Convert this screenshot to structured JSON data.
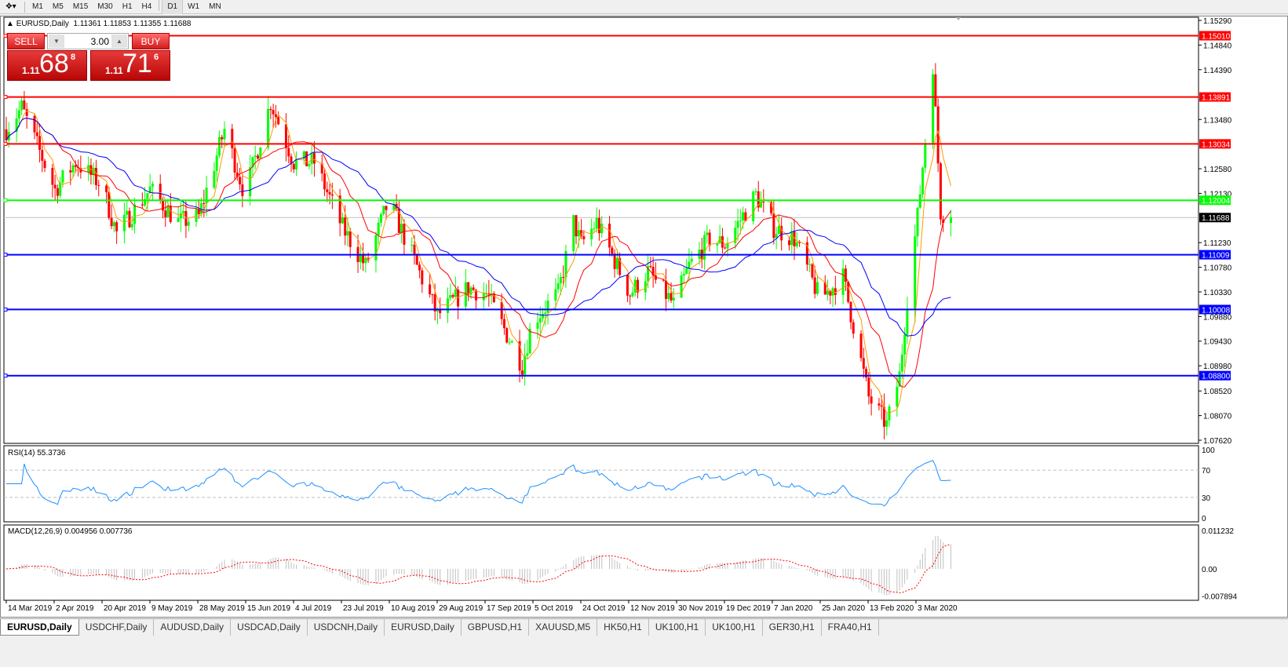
{
  "toolbar": {
    "timeframes": [
      "M1",
      "M5",
      "M15",
      "M30",
      "H1",
      "H4",
      "D1",
      "W1",
      "MN"
    ],
    "active": "D1"
  },
  "chart": {
    "symbol_title": "EURUSD,Daily",
    "ohlc": "1.11361 1.11853 1.11355 1.11688",
    "trade_panel": {
      "sell_label": "SELL",
      "buy_label": "BUY",
      "lots": "3.00",
      "sell_price": {
        "prefix": "1.11",
        "big": "68",
        "sup": "8"
      },
      "buy_price": {
        "prefix": "1.11",
        "big": "71",
        "sup": "6"
      }
    },
    "price_axis_labels": [
      "1.15290",
      "1.14840",
      "1.14390",
      "1.13480",
      "1.12580",
      "1.12130",
      "1.11230",
      "1.10780",
      "1.10330",
      "1.09880",
      "1.09430",
      "1.08980",
      "1.08520",
      "1.08070",
      "1.07620"
    ],
    "price_range": [
      1.0762,
      1.1529
    ],
    "bid": "1.11688",
    "horizontal_lines": [
      {
        "price": "1.15010",
        "color": "#ff0000"
      },
      {
        "price": "1.13891",
        "color": "#ff0000"
      },
      {
        "price": "1.13034",
        "color": "#ff0000"
      },
      {
        "price": "1.12004",
        "color": "#00ff00"
      },
      {
        "price": "1.11009",
        "color": "#0000ff"
      },
      {
        "price": "1.10008",
        "color": "#0000ff"
      },
      {
        "price": "1.08800",
        "color": "#0000ff"
      }
    ],
    "date_labels": [
      "14 Mar 2019",
      "2 Apr 2019",
      "20 Apr 2019",
      "9 May 2019",
      "28 May 2019",
      "15 Jun 2019",
      "4 Jul 2019",
      "23 Jul 2019",
      "10 Aug 2019",
      "29 Aug 2019",
      "17 Sep 2019",
      "5 Oct 2019",
      "24 Oct 2019",
      "12 Nov 2019",
      "30 Nov 2019",
      "19 Dec 2019",
      "7 Jan 2020",
      "25 Jan 2020",
      "13 Feb 2020",
      "3 Mar 2020"
    ],
    "colors": {
      "bull": "#00ff00",
      "bear": "#ff0000",
      "ma_fast": "#ff9900",
      "ma_mid": "#ff0000",
      "ma_slow": "#0000ff",
      "rsi": "#1e90ff",
      "macd_signal": "#ff0000",
      "macd_hist": "#c0c0c0"
    },
    "rsi": {
      "label": "RSI(14) 55.3736",
      "levels": [
        "100",
        "70",
        "30",
        "0"
      ]
    },
    "macd": {
      "label": "MACD(12,26,9) 0.004956 0.007736",
      "levels": [
        "0.011232",
        "0.00",
        "-0.007894"
      ]
    }
  },
  "chart_data": {
    "type": "candlestick",
    "waypoints": [
      [
        "2019-03-14",
        1.133
      ],
      [
        "2019-03-20",
        1.137
      ],
      [
        "2019-04-02",
        1.122
      ],
      [
        "2019-04-10",
        1.127
      ],
      [
        "2019-04-20",
        1.123
      ],
      [
        "2019-04-26",
        1.114
      ],
      [
        "2019-05-09",
        1.122
      ],
      [
        "2019-05-20",
        1.116
      ],
      [
        "2019-05-28",
        1.117
      ],
      [
        "2019-06-07",
        1.133
      ],
      [
        "2019-06-15",
        1.121
      ],
      [
        "2019-06-25",
        1.138
      ],
      [
        "2019-07-04",
        1.127
      ],
      [
        "2019-07-12",
        1.127
      ],
      [
        "2019-07-23",
        1.115
      ],
      [
        "2019-08-01",
        1.108
      ],
      [
        "2019-08-10",
        1.12
      ],
      [
        "2019-08-20",
        1.109
      ],
      [
        "2019-08-29",
        1.099
      ],
      [
        "2019-09-10",
        1.104
      ],
      [
        "2019-09-17",
        1.103
      ],
      [
        "2019-10-01",
        1.09
      ],
      [
        "2019-10-05",
        1.098
      ],
      [
        "2019-10-15",
        1.103
      ],
      [
        "2019-10-21",
        1.116
      ],
      [
        "2019-10-24",
        1.112
      ],
      [
        "2019-10-30",
        1.116
      ],
      [
        "2019-11-12",
        1.103
      ],
      [
        "2019-11-19",
        1.107
      ],
      [
        "2019-11-29",
        1.101
      ],
      [
        "2019-12-05",
        1.108
      ],
      [
        "2019-12-13",
        1.113
      ],
      [
        "2019-12-19",
        1.112
      ],
      [
        "2019-12-31",
        1.121
      ],
      [
        "2020-01-07",
        1.115
      ],
      [
        "2020-01-15",
        1.113
      ],
      [
        "2020-01-25",
        1.102
      ],
      [
        "2020-02-03",
        1.106
      ],
      [
        "2020-02-13",
        1.084
      ],
      [
        "2020-02-20",
        1.079
      ],
      [
        "2020-02-25",
        1.088
      ],
      [
        "2020-02-28",
        1.102
      ],
      [
        "2020-03-03",
        1.117
      ],
      [
        "2020-03-09",
        1.145
      ],
      [
        "2020-03-12",
        1.118
      ],
      [
        "2020-03-16",
        1.1169
      ]
    ]
  },
  "tabs": [
    "EURUSD,Daily",
    "USDCHF,Daily",
    "AUDUSD,Daily",
    "USDCAD,Daily",
    "USDCNH,Daily",
    "EURUSD,Daily",
    "GBPUSD,H1",
    "XAUUSD,M5",
    "HK50,H1",
    "UK100,H1",
    "UK100,H1",
    "GER30,H1",
    "FRA40,H1"
  ],
  "active_tab": 0
}
